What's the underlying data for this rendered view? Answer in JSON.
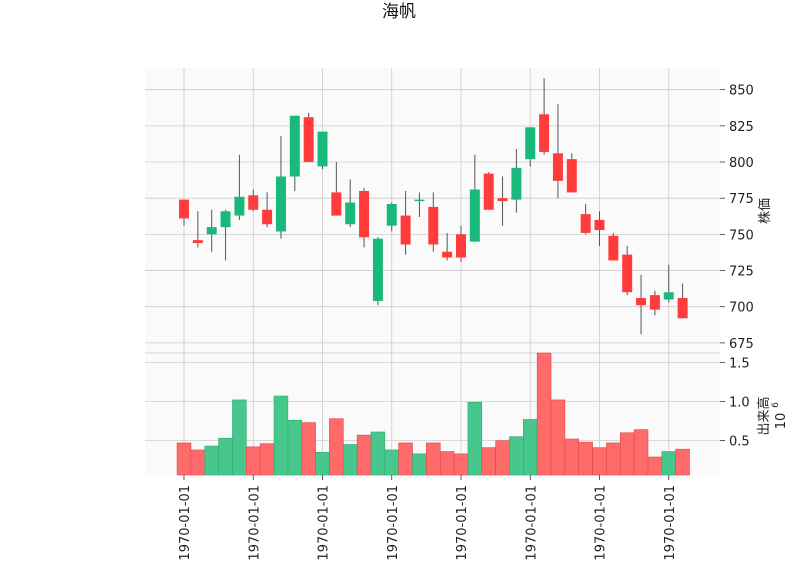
{
  "chart_data": {
    "type": "candlestick",
    "title": "海帆",
    "price_axis": {
      "label": "株価",
      "ylim": [
        668,
        865
      ],
      "ticks": [
        675,
        700,
        725,
        750,
        775,
        800,
        825,
        850
      ]
    },
    "volume_axis": {
      "label": "出来高",
      "exponent_label": "10",
      "exponent_sup": "6",
      "ylim": [
        0.06,
        1.62
      ],
      "ticks": [
        0.5,
        1.0,
        1.5
      ],
      "tick_labels": [
        "0.5",
        "1.0",
        "1.5"
      ]
    },
    "x_tick_labels": [
      "1970-01-01",
      "1970-01-01",
      "1970-01-01",
      "1970-01-01",
      "1970-01-01",
      "1970-01-01",
      "1970-01-01",
      "1970-01-01"
    ],
    "x_tick_positions": [
      0,
      5,
      10,
      15,
      20,
      25,
      30,
      35
    ],
    "colors": {
      "up": "#18b97a",
      "down": "#ff3b3b",
      "up_volume": "#47c78c",
      "down_volume": "#ff6b6b",
      "wick": "#555555"
    },
    "grid": true,
    "candles": [
      {
        "o": 774,
        "h": 774,
        "l": 756,
        "c": 761
      },
      {
        "o": 746,
        "h": 766,
        "l": 741,
        "c": 744
      },
      {
        "o": 750,
        "h": 767,
        "l": 738,
        "c": 755
      },
      {
        "o": 755,
        "h": 767,
        "l": 732,
        "c": 766
      },
      {
        "o": 763,
        "h": 805,
        "l": 760,
        "c": 776
      },
      {
        "o": 777,
        "h": 781,
        "l": 766,
        "c": 767
      },
      {
        "o": 767,
        "h": 779,
        "l": 755,
        "c": 757
      },
      {
        "o": 752,
        "h": 818,
        "l": 747,
        "c": 790
      },
      {
        "o": 790,
        "h": 832,
        "l": 780,
        "c": 832
      },
      {
        "o": 831,
        "h": 834,
        "l": 800,
        "c": 800
      },
      {
        "o": 797,
        "h": 821,
        "l": 795,
        "c": 821
      },
      {
        "o": 779,
        "h": 800,
        "l": 763,
        "c": 763
      },
      {
        "o": 757,
        "h": 788,
        "l": 755,
        "c": 772
      },
      {
        "o": 780,
        "h": 782,
        "l": 741,
        "c": 748
      },
      {
        "o": 704,
        "h": 748,
        "l": 701,
        "c": 747
      },
      {
        "o": 756,
        "h": 772,
        "l": 752,
        "c": 771
      },
      {
        "o": 763,
        "h": 780,
        "l": 736,
        "c": 743
      },
      {
        "o": 773,
        "h": 779,
        "l": 762,
        "c": 774
      },
      {
        "o": 769,
        "h": 779,
        "l": 738,
        "c": 743
      },
      {
        "o": 738,
        "h": 751,
        "l": 732,
        "c": 734
      },
      {
        "o": 750,
        "h": 756,
        "l": 731,
        "c": 734
      },
      {
        "o": 745,
        "h": 805,
        "l": 745,
        "c": 781
      },
      {
        "o": 792,
        "h": 793,
        "l": 767,
        "c": 767
      },
      {
        "o": 775,
        "h": 790,
        "l": 756,
        "c": 773
      },
      {
        "o": 774,
        "h": 809,
        "l": 765,
        "c": 796
      },
      {
        "o": 802,
        "h": 824,
        "l": 797,
        "c": 824
      },
      {
        "o": 833,
        "h": 858,
        "l": 805,
        "c": 807
      },
      {
        "o": 806,
        "h": 840,
        "l": 775,
        "c": 787
      },
      {
        "o": 802,
        "h": 806,
        "l": 779,
        "c": 779
      },
      {
        "o": 764,
        "h": 771,
        "l": 750,
        "c": 751
      },
      {
        "o": 760,
        "h": 766,
        "l": 742,
        "c": 753
      },
      {
        "o": 749,
        "h": 751,
        "l": 732,
        "c": 732
      },
      {
        "o": 736,
        "h": 742,
        "l": 708,
        "c": 710
      },
      {
        "o": 706,
        "h": 722,
        "l": 681,
        "c": 701
      },
      {
        "o": 708,
        "h": 711,
        "l": 694,
        "c": 698
      },
      {
        "o": 705,
        "h": 729,
        "l": 703,
        "c": 710
      },
      {
        "o": 706,
        "h": 716,
        "l": 693,
        "c": 692
      }
    ],
    "volume": [
      0.47,
      0.38,
      0.43,
      0.53,
      1.02,
      0.42,
      0.46,
      1.07,
      0.76,
      0.73,
      0.35,
      0.78,
      0.45,
      0.57,
      0.61,
      0.38,
      0.47,
      0.33,
      0.47,
      0.36,
      0.33,
      0.99,
      0.41,
      0.5,
      0.55,
      0.77,
      1.65,
      1.02,
      0.52,
      0.48,
      0.41,
      0.47,
      0.6,
      0.64,
      0.29,
      0.36,
      0.39
    ]
  }
}
